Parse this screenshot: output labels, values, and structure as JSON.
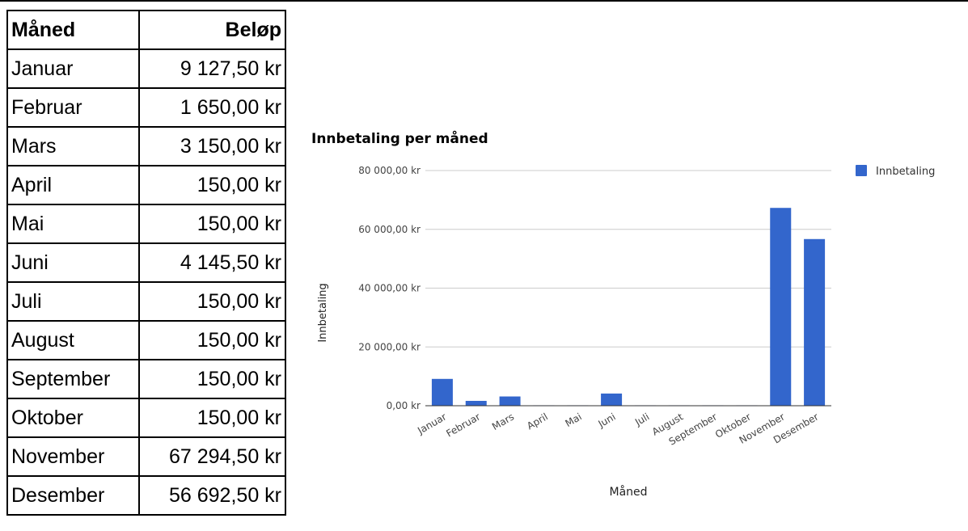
{
  "table": {
    "headers": [
      "Måned",
      "Beløp"
    ],
    "rows": [
      [
        "Januar",
        "9 127,50 kr"
      ],
      [
        "Februar",
        "1 650,00 kr"
      ],
      [
        "Mars",
        "3 150,00 kr"
      ],
      [
        "April",
        "150,00 kr"
      ],
      [
        "Mai",
        "150,00 kr"
      ],
      [
        "Juni",
        "4 145,50 kr"
      ],
      [
        "Juli",
        "150,00 kr"
      ],
      [
        "August",
        "150,00 kr"
      ],
      [
        "September",
        "150,00 kr"
      ],
      [
        "Oktober",
        "150,00 kr"
      ],
      [
        "November",
        "67 294,50 kr"
      ],
      [
        "Desember",
        "56 692,50 kr"
      ]
    ]
  },
  "chart_data": {
    "type": "bar",
    "title": "Innbetaling per måned",
    "xlabel": "Måned",
    "ylabel": "Innbetaling",
    "categories": [
      "Januar",
      "Februar",
      "Mars",
      "April",
      "Mai",
      "Juni",
      "Juli",
      "August",
      "September",
      "Oktober",
      "November",
      "Desember"
    ],
    "series": [
      {
        "name": "Innbetaling",
        "values": [
          9127.5,
          1650,
          3150,
          150,
          150,
          4145.5,
          150,
          150,
          150,
          150,
          67294.5,
          56692.5
        ]
      }
    ],
    "ylim": [
      0,
      80000
    ],
    "yticks": [
      0,
      20000,
      40000,
      60000,
      80000
    ],
    "ytick_labels": [
      "0,00 kr",
      "20 000,00 kr",
      "40 000,00 kr",
      "60 000,00 kr",
      "80 000,00 kr"
    ],
    "legend_position": "right",
    "grid": true,
    "bar_color": "#3366cc"
  }
}
